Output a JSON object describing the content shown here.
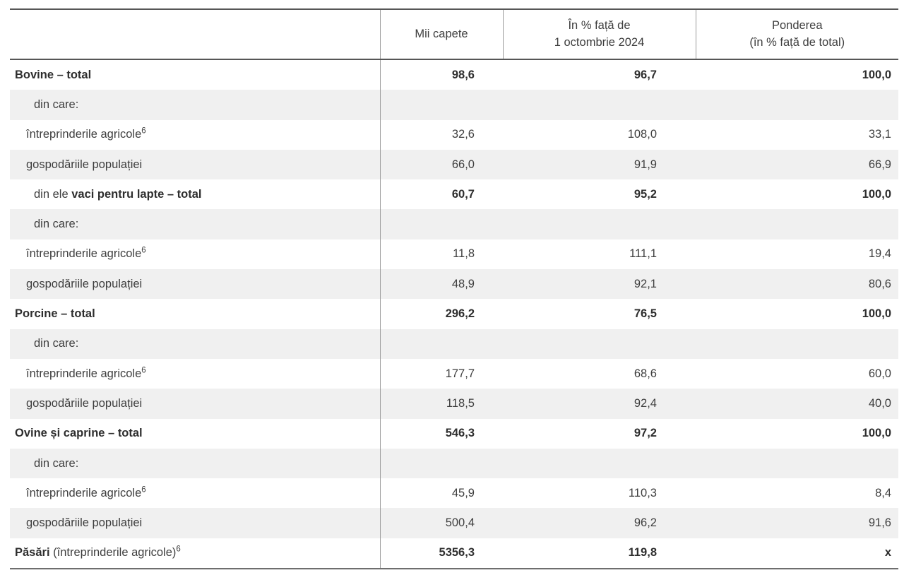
{
  "table": {
    "header": {
      "col_label": "",
      "col1": "Mii capete",
      "col2_line1": "În % față de",
      "col2_line2": "1 octombrie 2024",
      "col3_line1": "Ponderea",
      "col3_line2": "(în % față de total)"
    },
    "colors": {
      "rule_dark": "#565656",
      "rule_light": "#9b9b9b",
      "shaded_row": "#f0f0f0",
      "text": "#3e3e3e"
    },
    "rows": [
      {
        "parts": [
          {
            "text": "Bovine – total",
            "bold": true
          }
        ],
        "indent": 0,
        "shaded": false,
        "bold_values": true,
        "values": [
          "98,6",
          "96,7",
          "100,0"
        ]
      },
      {
        "parts": [
          {
            "text": "din care:"
          }
        ],
        "indent": 2,
        "shaded": true,
        "bold_values": false,
        "values": [
          "",
          "",
          ""
        ]
      },
      {
        "parts": [
          {
            "text": "întreprinderile agricole"
          },
          {
            "text": "6",
            "sup": true
          }
        ],
        "indent": 1,
        "shaded": false,
        "bold_values": false,
        "values": [
          "32,6",
          "108,0",
          "33,1"
        ]
      },
      {
        "parts": [
          {
            "text": "gospodăriile populației"
          }
        ],
        "indent": 1,
        "shaded": true,
        "bold_values": false,
        "values": [
          "66,0",
          "91,9",
          "66,9"
        ]
      },
      {
        "parts": [
          {
            "text": "din ele "
          },
          {
            "text": "vaci pentru lapte – total",
            "bold": true
          }
        ],
        "indent": 2,
        "shaded": false,
        "bold_values": true,
        "values": [
          "60,7",
          "95,2",
          "100,0"
        ]
      },
      {
        "parts": [
          {
            "text": "din care:"
          }
        ],
        "indent": 2,
        "shaded": true,
        "bold_values": false,
        "values": [
          "",
          "",
          ""
        ]
      },
      {
        "parts": [
          {
            "text": "întreprinderile agricole"
          },
          {
            "text": "6",
            "sup": true
          }
        ],
        "indent": 1,
        "shaded": false,
        "bold_values": false,
        "values": [
          "11,8",
          "111,1",
          "19,4"
        ]
      },
      {
        "parts": [
          {
            "text": "gospodăriile populației"
          }
        ],
        "indent": 1,
        "shaded": true,
        "bold_values": false,
        "values": [
          "48,9",
          "92,1",
          "80,6"
        ]
      },
      {
        "parts": [
          {
            "text": "Porcine – total",
            "bold": true
          }
        ],
        "indent": 0,
        "shaded": false,
        "bold_values": true,
        "values": [
          "296,2",
          "76,5",
          "100,0"
        ]
      },
      {
        "parts": [
          {
            "text": "din care:"
          }
        ],
        "indent": 2,
        "shaded": true,
        "bold_values": false,
        "values": [
          "",
          "",
          ""
        ]
      },
      {
        "parts": [
          {
            "text": "întreprinderile agricole"
          },
          {
            "text": "6",
            "sup": true
          }
        ],
        "indent": 1,
        "shaded": false,
        "bold_values": false,
        "values": [
          "177,7",
          "68,6",
          "60,0"
        ]
      },
      {
        "parts": [
          {
            "text": "gospodăriile populației"
          }
        ],
        "indent": 1,
        "shaded": true,
        "bold_values": false,
        "values": [
          "118,5",
          "92,4",
          "40,0"
        ]
      },
      {
        "parts": [
          {
            "text": "Ovine și caprine – total",
            "bold": true
          }
        ],
        "indent": 0,
        "shaded": false,
        "bold_values": true,
        "values": [
          "546,3",
          "97,2",
          "100,0"
        ]
      },
      {
        "parts": [
          {
            "text": "din care:"
          }
        ],
        "indent": 2,
        "shaded": true,
        "bold_values": false,
        "values": [
          "",
          "",
          ""
        ]
      },
      {
        "parts": [
          {
            "text": "întreprinderile agricole"
          },
          {
            "text": "6",
            "sup": true
          }
        ],
        "indent": 1,
        "shaded": false,
        "bold_values": false,
        "values": [
          "45,9",
          "110,3",
          "8,4"
        ]
      },
      {
        "parts": [
          {
            "text": "gospodăriile populației"
          }
        ],
        "indent": 1,
        "shaded": true,
        "bold_values": false,
        "values": [
          "500,4",
          "96,2",
          "91,6"
        ]
      },
      {
        "parts": [
          {
            "text": "Păsări",
            "bold": true
          },
          {
            "text": " (întreprinderile agricole)"
          },
          {
            "text": "6",
            "sup": true
          }
        ],
        "indent": 0,
        "shaded": false,
        "bold_values": true,
        "values": [
          "5356,3",
          "119,8",
          "x"
        ]
      }
    ]
  }
}
